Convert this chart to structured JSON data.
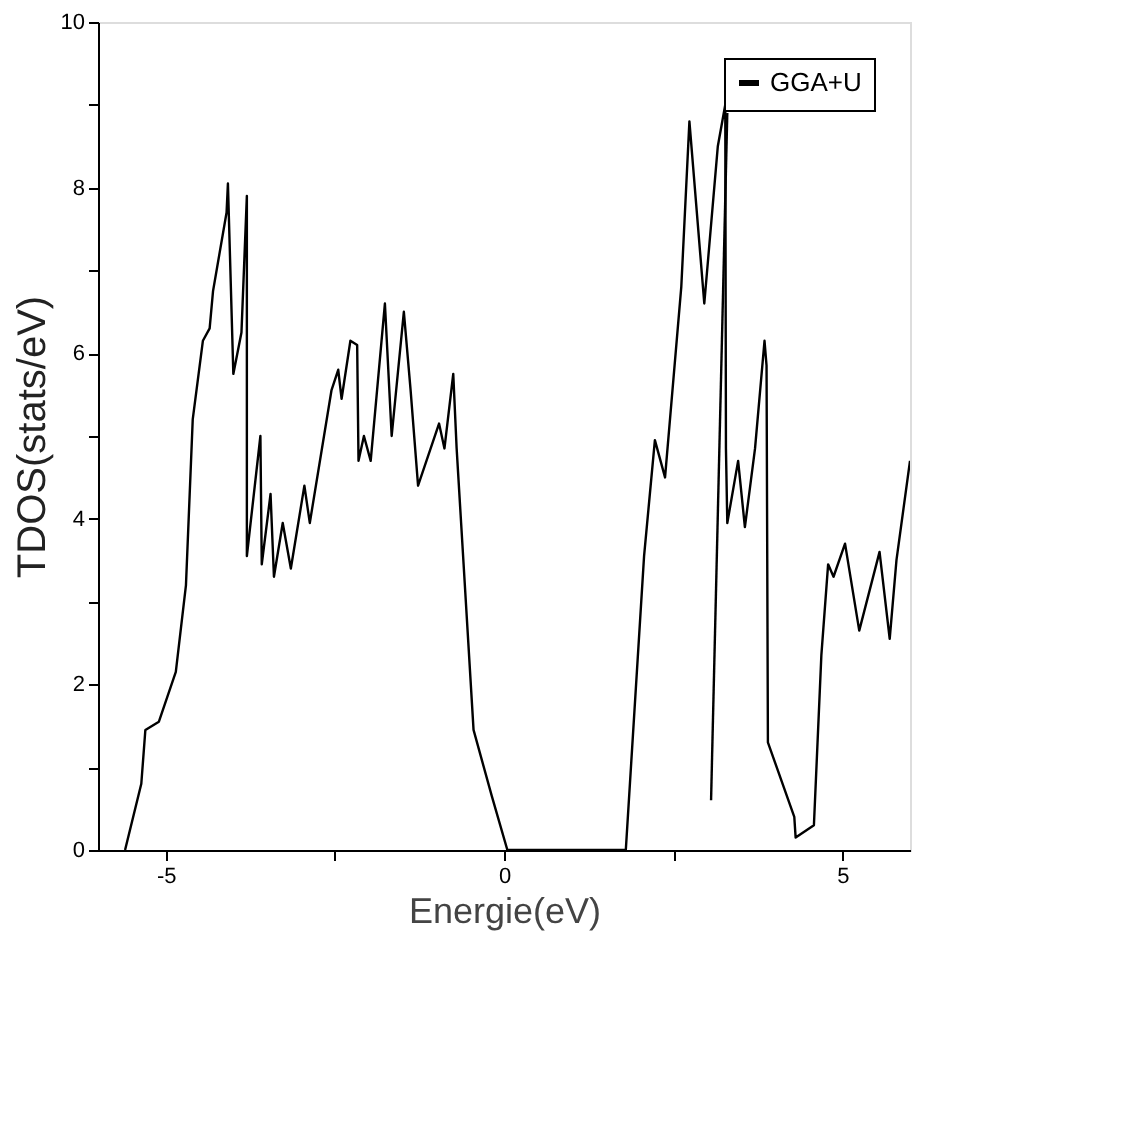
{
  "chart_data": {
    "type": "line",
    "xlabel": "Energie(eV)",
    "ylabel": "TDOS(stats/eV)",
    "xlim": [
      -6,
      6
    ],
    "ylim": [
      0,
      10
    ],
    "xticks": [
      -5,
      {
        "value": -2.5,
        "label": null
      },
      0,
      {
        "value": 2.5,
        "label": null
      },
      5
    ],
    "yticks": [
      0,
      {
        "value": 1,
        "label": null
      },
      2,
      {
        "value": 3,
        "label": null
      },
      4,
      {
        "value": 5,
        "label": null
      },
      6,
      {
        "value": 7,
        "label": null
      },
      8,
      {
        "value": 9,
        "label": null
      },
      10
    ],
    "grid": false,
    "legend": "top right",
    "marker": "none",
    "line_style": "solid",
    "series": [
      {
        "name": "GGA+U",
        "color": "#000000",
        "x": [
          -5.6,
          -5.36,
          -5.3,
          -5.1,
          -4.85,
          -4.7,
          -4.6,
          -4.45,
          -4.35,
          -4.3,
          -4.1,
          -4.08,
          -4.0,
          -3.88,
          -3.8,
          -3.8,
          -3.6,
          -3.58,
          -3.45,
          -3.4,
          -3.27,
          -3.15,
          -2.95,
          -2.87,
          -2.55,
          -2.45,
          -2.4,
          -2.27,
          -2.17,
          -2.15,
          -2.07,
          -1.97,
          -1.76,
          -1.66,
          -1.48,
          -1.38,
          -1.27,
          -0.96,
          -0.88,
          -0.75,
          -0.7,
          -0.45,
          -0.18,
          0.05,
          1.8,
          2.07,
          2.23,
          2.38,
          2.62,
          2.74,
          2.96,
          3.16,
          3.27,
          3.28,
          3.3,
          3.46,
          3.56,
          3.71,
          3.85,
          3.88,
          3.9,
          4.29,
          4.31,
          4.58,
          4.69,
          4.79,
          4.87,
          5.04,
          5.25,
          5.55,
          5.7,
          5.8,
          6.0
        ],
        "values": [
          0,
          0.8,
          1.45,
          1.55,
          2.15,
          3.2,
          5.2,
          6.15,
          6.3,
          6.75,
          7.7,
          8.05,
          5.75,
          6.25,
          7.9,
          3.55,
          5.0,
          3.45,
          4.3,
          3.3,
          3.95,
          3.4,
          4.4,
          3.95,
          5.55,
          5.8,
          5.45,
          6.15,
          6.1,
          4.7,
          5.0,
          4.7,
          6.6,
          5.0,
          6.5,
          5.55,
          4.4,
          5.15,
          4.85,
          5.75,
          4.85,
          1.45,
          0.65,
          0,
          0,
          3.55,
          4.95,
          4.5,
          6.8,
          8.8,
          6.6,
          8.5,
          9.0,
          4.85,
          3.95,
          4.7,
          3.9,
          4.85,
          6.15,
          5.85,
          1.3,
          0.4,
          0.15,
          0.3,
          2.35,
          3.45,
          3.3,
          3.7,
          2.65,
          3.6,
          2.55,
          3.5,
          4.7
        ]
      },
      {
        "color": "#000000",
        "x": [
          3.06,
          3.3
        ],
        "values": [
          0.6,
          8.9
        ]
      }
    ]
  }
}
